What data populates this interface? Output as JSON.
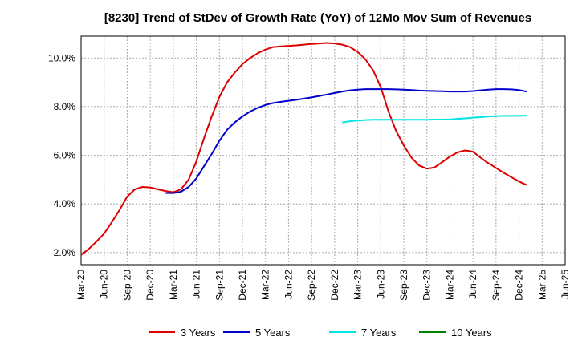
{
  "chart_data": {
    "type": "line",
    "title": "[8230]  Trend of StDev of Growth Rate (YoY) of 12Mo Mov Sum of Revenues",
    "xlabel": "",
    "ylabel": "",
    "ylim": [
      1.5,
      10.9
    ],
    "grid": true,
    "legend_position": "bottom",
    "x_ticks": [
      "Mar-20",
      "Jun-20",
      "Sep-20",
      "Dec-20",
      "Mar-21",
      "Jun-21",
      "Sep-21",
      "Dec-21",
      "Mar-22",
      "Jun-22",
      "Sep-22",
      "Dec-22",
      "Mar-23",
      "Jun-23",
      "Sep-23",
      "Dec-23",
      "Mar-24",
      "Jun-24",
      "Sep-24",
      "Dec-24",
      "Mar-25",
      "Jun-25"
    ],
    "y_ticks": [
      {
        "value": 2.0,
        "label": "2.0%"
      },
      {
        "value": 4.0,
        "label": "4.0%"
      },
      {
        "value": 6.0,
        "label": "6.0%"
      },
      {
        "value": 8.0,
        "label": "8.0%"
      },
      {
        "value": 10.0,
        "label": "10.0%"
      }
    ],
    "series": [
      {
        "name": "3 Years",
        "color": "#dd0000",
        "values": [
          1.9,
          2.15,
          2.45,
          2.78,
          3.25,
          3.75,
          4.3,
          4.6,
          4.7,
          4.68,
          4.6,
          4.53,
          4.48,
          4.6,
          5.0,
          5.75,
          6.7,
          7.6,
          8.4,
          9.0,
          9.4,
          9.75,
          10.0,
          10.2,
          10.35,
          10.45,
          10.48,
          10.5,
          10.52,
          10.55,
          10.58,
          10.6,
          10.62,
          10.6,
          10.55,
          10.45,
          10.25,
          9.95,
          9.5,
          8.8,
          7.8,
          7.0,
          6.4,
          5.9,
          5.58,
          5.45,
          5.5,
          5.72,
          5.95,
          6.12,
          6.2,
          6.15,
          5.9,
          5.68,
          5.48,
          5.28,
          5.1,
          4.92,
          4.78
        ]
      },
      {
        "name": "5 Years",
        "color": "#0000cc",
        "values": [
          null,
          null,
          null,
          null,
          null,
          null,
          null,
          null,
          null,
          null,
          null,
          4.45,
          4.45,
          4.5,
          4.7,
          5.05,
          5.55,
          6.05,
          6.6,
          7.05,
          7.35,
          7.6,
          7.8,
          7.95,
          8.07,
          8.15,
          8.2,
          8.24,
          8.28,
          8.33,
          8.38,
          8.44,
          8.5,
          8.56,
          8.62,
          8.67,
          8.7,
          8.72,
          8.72,
          8.72,
          8.72,
          8.71,
          8.7,
          8.68,
          8.66,
          8.65,
          8.64,
          8.63,
          8.62,
          8.62,
          8.62,
          8.64,
          8.67,
          8.7,
          8.72,
          8.72,
          8.71,
          8.68,
          8.62
        ]
      },
      {
        "name": "7 Years",
        "color": "#00e5e5",
        "values": [
          null,
          null,
          null,
          null,
          null,
          null,
          null,
          null,
          null,
          null,
          null,
          null,
          null,
          null,
          null,
          null,
          null,
          null,
          null,
          null,
          null,
          null,
          null,
          null,
          null,
          null,
          null,
          null,
          null,
          null,
          null,
          null,
          null,
          null,
          7.35,
          7.4,
          7.43,
          7.45,
          7.46,
          7.46,
          7.46,
          7.46,
          7.46,
          7.46,
          7.46,
          7.46,
          7.47,
          7.47,
          7.48,
          7.5,
          7.52,
          7.55,
          7.57,
          7.6,
          7.61,
          7.62,
          7.62,
          7.62,
          7.63
        ]
      },
      {
        "name": "10 Years",
        "color": "#008000",
        "values": []
      }
    ]
  }
}
